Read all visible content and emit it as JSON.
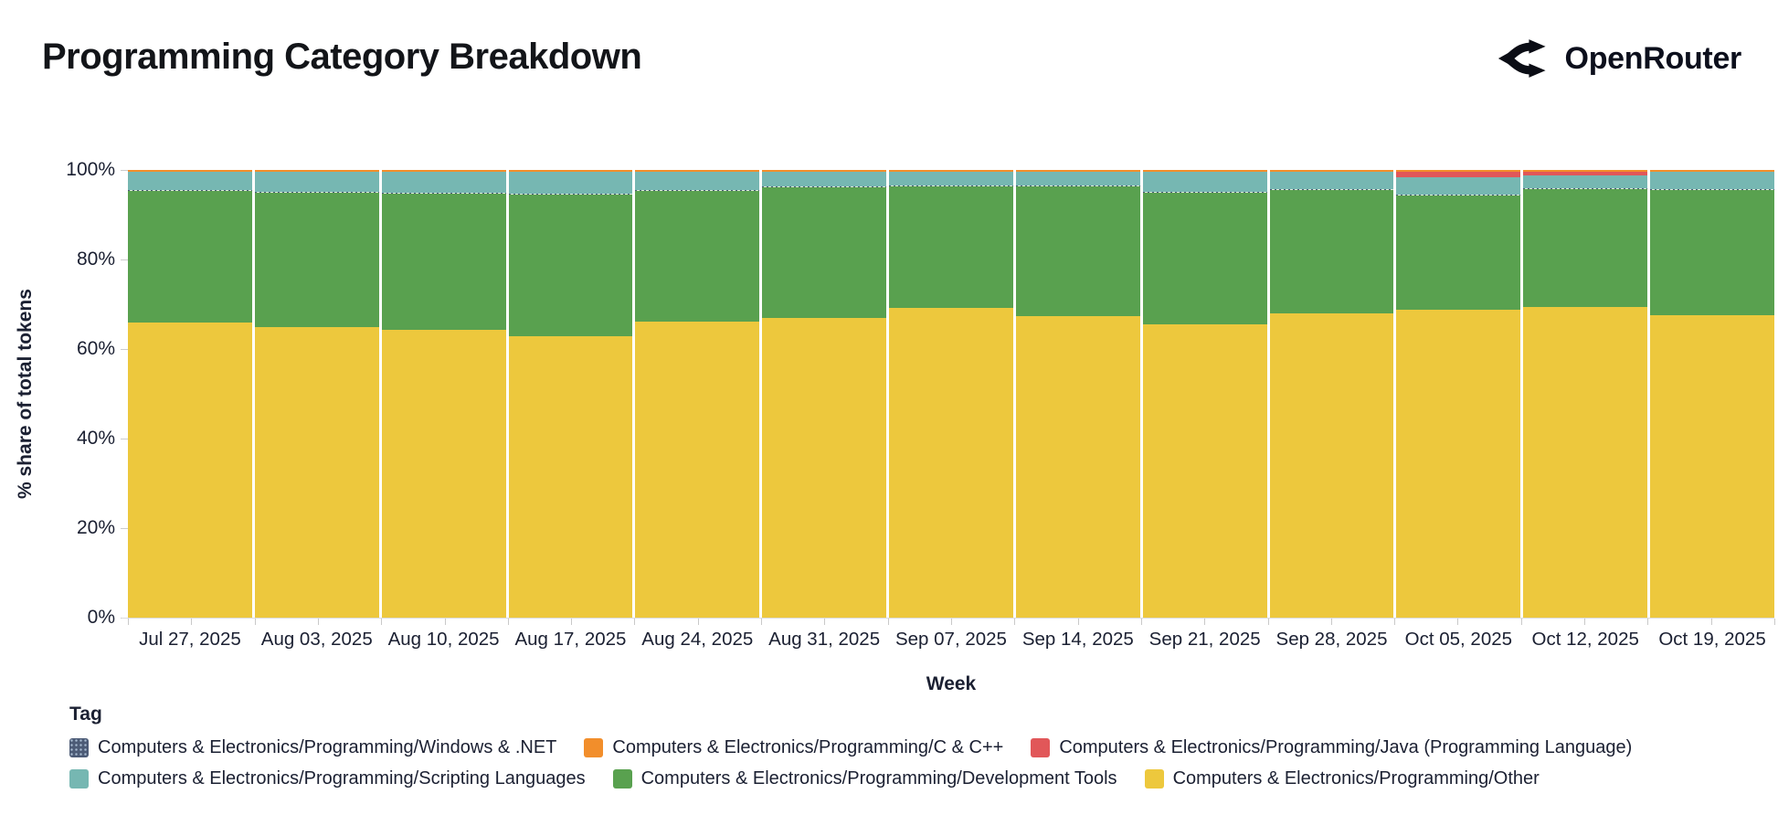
{
  "header": {
    "title": "Programming Category Breakdown",
    "brand": "OpenRouter"
  },
  "chart_data": {
    "type": "bar",
    "variant": "stacked-100-percent",
    "title": "Programming Category Breakdown",
    "xlabel": "Week",
    "ylabel": "% share of total tokens",
    "ylim": [
      0,
      100
    ],
    "ytick_levels": [
      0,
      20,
      40,
      60,
      80,
      100
    ],
    "ytick_labels": [
      "0%",
      "20%",
      "40%",
      "60%",
      "80%",
      "100%"
    ],
    "grid": false,
    "legend_title": "Tag",
    "legend_position": "bottom",
    "categories": [
      "Jul 27, 2025",
      "Aug 03, 2025",
      "Aug 10, 2025",
      "Aug 17, 2025",
      "Aug 24, 2025",
      "Aug 31, 2025",
      "Sep 07, 2025",
      "Sep 14, 2025",
      "Sep 21, 2025",
      "Sep 28, 2025",
      "Oct 05, 2025",
      "Oct 12, 2025",
      "Oct 19, 2025"
    ],
    "series": [
      {
        "name": "Computers & Electronics/Programming/Other",
        "color": "#edc83d",
        "values": [
          65.9,
          64.8,
          64.2,
          62.9,
          66.1,
          66.9,
          69.1,
          67.3,
          65.5,
          68.0,
          68.8,
          69.3,
          67.6
        ]
      },
      {
        "name": "Computers & Electronics/Programming/Development Tools",
        "color": "#59a14f",
        "values": [
          29.4,
          30.1,
          30.5,
          31.6,
          29.2,
          29.2,
          27.2,
          29.0,
          29.4,
          27.5,
          25.5,
          26.4,
          27.9
        ]
      },
      {
        "name": "Computers & Electronics/Programming/Windows & .NET",
        "color": "#4c5b76",
        "pattern": "dots",
        "values": [
          0.2,
          0.2,
          0.2,
          0.2,
          0.2,
          0.2,
          0.2,
          0.2,
          0.2,
          0.2,
          0.2,
          0.2,
          0.2
        ]
      },
      {
        "name": "Computers & Electronics/Programming/Scripting Languages",
        "color": "#76b7b2",
        "values": [
          4.1,
          4.5,
          4.7,
          5.0,
          4.1,
          3.4,
          3.2,
          3.2,
          4.5,
          3.9,
          3.9,
          2.8,
          3.9
        ]
      },
      {
        "name": "Computers & Electronics/Programming/Java (Programming Language)",
        "color": "#e15759",
        "values": [
          0,
          0,
          0,
          0,
          0,
          0,
          0,
          0,
          0,
          0,
          1.2,
          1.0,
          0
        ]
      },
      {
        "name": "Computers & Electronics/Programming/C & C++",
        "color": "#f28e2b",
        "values": [
          0.4,
          0.4,
          0.4,
          0.3,
          0.4,
          0.3,
          0.3,
          0.3,
          0.4,
          0.4,
          0.4,
          0.3,
          0.4
        ]
      }
    ],
    "legend": [
      {
        "label": "Computers & Electronics/Programming/Windows & .NET",
        "color": "#4c5b76",
        "pattern": "dots"
      },
      {
        "label": "Computers & Electronics/Programming/C & C++",
        "color": "#f28e2b"
      },
      {
        "label": "Computers & Electronics/Programming/Java (Programming Language)",
        "color": "#e15759"
      },
      {
        "label": "Computers & Electronics/Programming/Scripting Languages",
        "color": "#76b7b2"
      },
      {
        "label": "Computers & Electronics/Programming/Development Tools",
        "color": "#59a14f"
      },
      {
        "label": "Computers & Electronics/Programming/Other",
        "color": "#edc83d"
      }
    ]
  },
  "colors": {
    "axis_text": "#1b2032",
    "axis_line": "#dcdcdc",
    "tick": "#c9c9c9",
    "title_text": "#131519",
    "brand_text": "#0c0f1c"
  }
}
